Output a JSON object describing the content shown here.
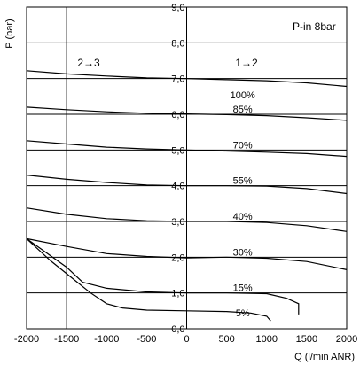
{
  "chart_data": {
    "type": "line",
    "title": "",
    "annotation": "P-in 8bar",
    "region_left_label": "2→3",
    "region_right_label": "1→2",
    "xlabel": "Q (l/min ANR)",
    "ylabel": "P (bar)",
    "xlim": [
      -2000,
      2000
    ],
    "ylim": [
      0,
      9
    ],
    "x_ticks": [
      -2000,
      -1500,
      -1000,
      -500,
      0,
      500,
      1000,
      1500,
      2000
    ],
    "y_ticks": [
      0,
      1,
      2,
      3,
      4,
      5,
      6,
      7,
      8,
      9
    ],
    "y_tick_labels": [
      "0,0",
      "1,0",
      "2,0",
      "3,0",
      "4,0",
      "5,0",
      "6,0",
      "7,0",
      "8,0",
      "9,0"
    ],
    "x_gridlines": [
      -1500,
      0
    ],
    "y_gridlines": [
      1,
      2,
      3,
      4,
      5,
      6,
      7,
      8
    ],
    "series": [
      {
        "name": "100%",
        "label_at": [
          700,
          6.55
        ],
        "points": [
          [
            -2000,
            7.22
          ],
          [
            -1500,
            7.13
          ],
          [
            -1000,
            7.07
          ],
          [
            -500,
            7.02
          ],
          [
            0,
            7.0
          ],
          [
            500,
            6.97
          ],
          [
            1000,
            6.94
          ],
          [
            1500,
            6.88
          ],
          [
            2000,
            6.78
          ]
        ]
      },
      {
        "name": "85%",
        "label_at": [
          700,
          6.15
        ],
        "points": [
          [
            -2000,
            6.2
          ],
          [
            -1500,
            6.13
          ],
          [
            -1000,
            6.07
          ],
          [
            -500,
            6.03
          ],
          [
            0,
            6.01
          ],
          [
            500,
            5.99
          ],
          [
            1000,
            5.96
          ],
          [
            1500,
            5.9
          ],
          [
            2000,
            5.83
          ]
        ]
      },
      {
        "name": "70%",
        "label_at": [
          700,
          5.15
        ],
        "points": [
          [
            -2000,
            5.26
          ],
          [
            -1500,
            5.17
          ],
          [
            -1000,
            5.08
          ],
          [
            -500,
            5.03
          ],
          [
            0,
            5.0
          ],
          [
            500,
            4.97
          ],
          [
            1000,
            4.94
          ],
          [
            1500,
            4.9
          ],
          [
            2000,
            4.82
          ]
        ]
      },
      {
        "name": "55%",
        "label_at": [
          700,
          4.15
        ],
        "points": [
          [
            -2000,
            4.3
          ],
          [
            -1500,
            4.18
          ],
          [
            -1000,
            4.09
          ],
          [
            -500,
            4.02
          ],
          [
            0,
            4.0
          ],
          [
            500,
            4.0
          ],
          [
            1000,
            3.99
          ],
          [
            1500,
            3.92
          ],
          [
            2000,
            3.78
          ]
        ]
      },
      {
        "name": "40%",
        "label_at": [
          700,
          3.15
        ],
        "points": [
          [
            -2000,
            3.38
          ],
          [
            -1500,
            3.2
          ],
          [
            -1000,
            3.08
          ],
          [
            -500,
            3.02
          ],
          [
            0,
            3.0
          ],
          [
            500,
            3.0
          ],
          [
            1000,
            2.97
          ],
          [
            1500,
            2.88
          ],
          [
            2000,
            2.72
          ]
        ]
      },
      {
        "name": "30%",
        "label_at": [
          700,
          2.15
        ],
        "points": [
          [
            -2000,
            2.52
          ],
          [
            -1500,
            2.3
          ],
          [
            -1000,
            2.1
          ],
          [
            -500,
            2.02
          ],
          [
            0,
            1.98
          ],
          [
            500,
            2.0
          ],
          [
            1000,
            1.97
          ],
          [
            1500,
            1.88
          ],
          [
            2000,
            1.65
          ]
        ]
      },
      {
        "name": "15%",
        "label_at": [
          700,
          1.15
        ],
        "points": [
          [
            -2000,
            2.52
          ],
          [
            -1800,
            2.2
          ],
          [
            -1500,
            1.72
          ],
          [
            -1300,
            1.3
          ],
          [
            -1000,
            1.13
          ],
          [
            -500,
            1.03
          ],
          [
            0,
            1.0
          ],
          [
            500,
            1.0
          ],
          [
            1000,
            0.98
          ],
          [
            1250,
            0.85
          ],
          [
            1400,
            0.7
          ],
          [
            1400,
            0.4
          ]
        ]
      },
      {
        "name": "5%",
        "label_at": [
          700,
          0.45
        ],
        "points": [
          [
            -2000,
            2.52
          ],
          [
            -1700,
            1.9
          ],
          [
            -1450,
            1.45
          ],
          [
            -1200,
            1.0
          ],
          [
            -1000,
            0.7
          ],
          [
            -800,
            0.58
          ],
          [
            -500,
            0.52
          ],
          [
            0,
            0.5
          ],
          [
            500,
            0.48
          ],
          [
            800,
            0.44
          ],
          [
            1000,
            0.35
          ],
          [
            1050,
            0.22
          ]
        ]
      }
    ]
  }
}
